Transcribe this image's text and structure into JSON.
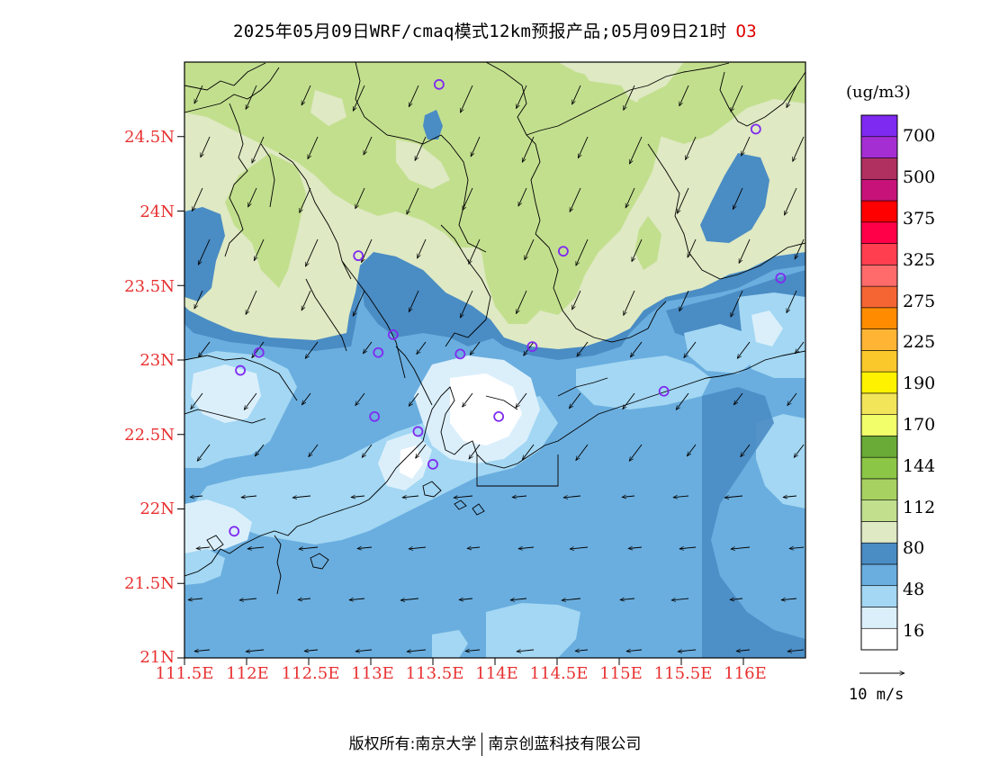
{
  "title": "2025年05月09日WRF/cmaq模式12km预报产品;05月09日21时",
  "species": "O3",
  "units": "(ug/m3)",
  "lat_ticks": [
    "24.5N",
    "24N",
    "23.5N",
    "23N",
    "22.5N",
    "22N",
    "21.5N",
    "21N"
  ],
  "lon_ticks": [
    "111.5E",
    "112E",
    "112.5E",
    "113E",
    "113.5E",
    "114E",
    "114.5E",
    "115E",
    "115.5E",
    "116E"
  ],
  "colorbar": {
    "colors": [
      "#ffffff",
      "#dbeffb",
      "#a3d7f3",
      "#6aaedf",
      "#4a8cc4",
      "#dfe9c3",
      "#c2df8e",
      "#a7d161",
      "#8bc646",
      "#6aaa36",
      "#f2ff6b",
      "#f2e55a",
      "#fff200",
      "#fbc82c",
      "#ffb533",
      "#ff8c00",
      "#f56534",
      "#ff6b6b",
      "#ff3f50",
      "#ff0048",
      "#ff0000",
      "#c7127a",
      "#b03060",
      "#a52ed2",
      "#7f2af0"
    ],
    "labels": [
      "16",
      "48",
      "80",
      "112",
      "144",
      "170",
      "190",
      "225",
      "275",
      "325",
      "375",
      "500",
      "700"
    ]
  },
  "vector_reference": "10 m/s",
  "footer": {
    "left": "版权所有:南京大学",
    "right": "南京创蓝科技有限公司"
  },
  "sites": [
    {
      "lon": 113.55,
      "lat": 24.85
    },
    {
      "lon": 116.1,
      "lat": 24.55
    },
    {
      "lon": 112.9,
      "lat": 23.7
    },
    {
      "lon": 114.55,
      "lat": 23.73
    },
    {
      "lon": 116.3,
      "lat": 23.55
    },
    {
      "lon": 112.1,
      "lat": 23.05
    },
    {
      "lon": 113.06,
      "lat": 23.05
    },
    {
      "lon": 113.18,
      "lat": 23.17
    },
    {
      "lon": 113.72,
      "lat": 23.04
    },
    {
      "lon": 114.3,
      "lat": 23.09
    },
    {
      "lon": 111.95,
      "lat": 22.93
    },
    {
      "lon": 115.36,
      "lat": 22.79
    },
    {
      "lon": 113.03,
      "lat": 22.62
    },
    {
      "lon": 113.38,
      "lat": 22.52
    },
    {
      "lon": 114.03,
      "lat": 22.62
    },
    {
      "lon": 113.5,
      "lat": 22.3
    },
    {
      "lon": 111.9,
      "lat": 21.85
    }
  ]
}
